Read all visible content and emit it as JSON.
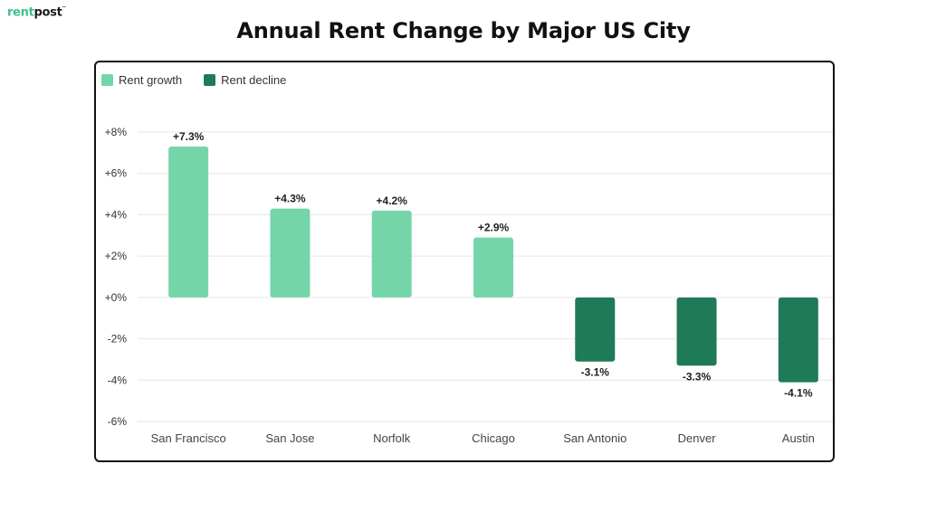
{
  "brand": {
    "name_part1": "rent",
    "name_part2": "post"
  },
  "colors": {
    "growth": "#74d6a8",
    "decline": "#1f7a58",
    "grid": "#e6e6e6"
  },
  "chart_data": {
    "type": "bar",
    "title": "Annual Rent Change by Major US City",
    "xlabel": "",
    "ylabel": "",
    "categories": [
      "San Francisco",
      "San Jose",
      "Norfolk",
      "Chicago",
      "San Antonio",
      "Denver",
      "Austin"
    ],
    "values": [
      7.3,
      4.3,
      4.2,
      2.9,
      -3.1,
      -3.3,
      -4.1
    ],
    "data_labels": [
      "+7.3%",
      "+4.3%",
      "+4.2%",
      "+2.9%",
      "-3.1%",
      "-3.3%",
      "-4.1%"
    ],
    "ylim": [
      -6,
      8
    ],
    "yticks": [
      8,
      6,
      4,
      2,
      0,
      -2,
      -4,
      -6
    ],
    "ytick_labels": [
      "+8%",
      "+6%",
      "+4%",
      "+2%",
      "+0%",
      "-2%",
      "-4%",
      "-6%"
    ],
    "legend": {
      "position": "top-left",
      "entries": [
        "Rent growth",
        "Rent decline"
      ]
    },
    "grid": true
  }
}
